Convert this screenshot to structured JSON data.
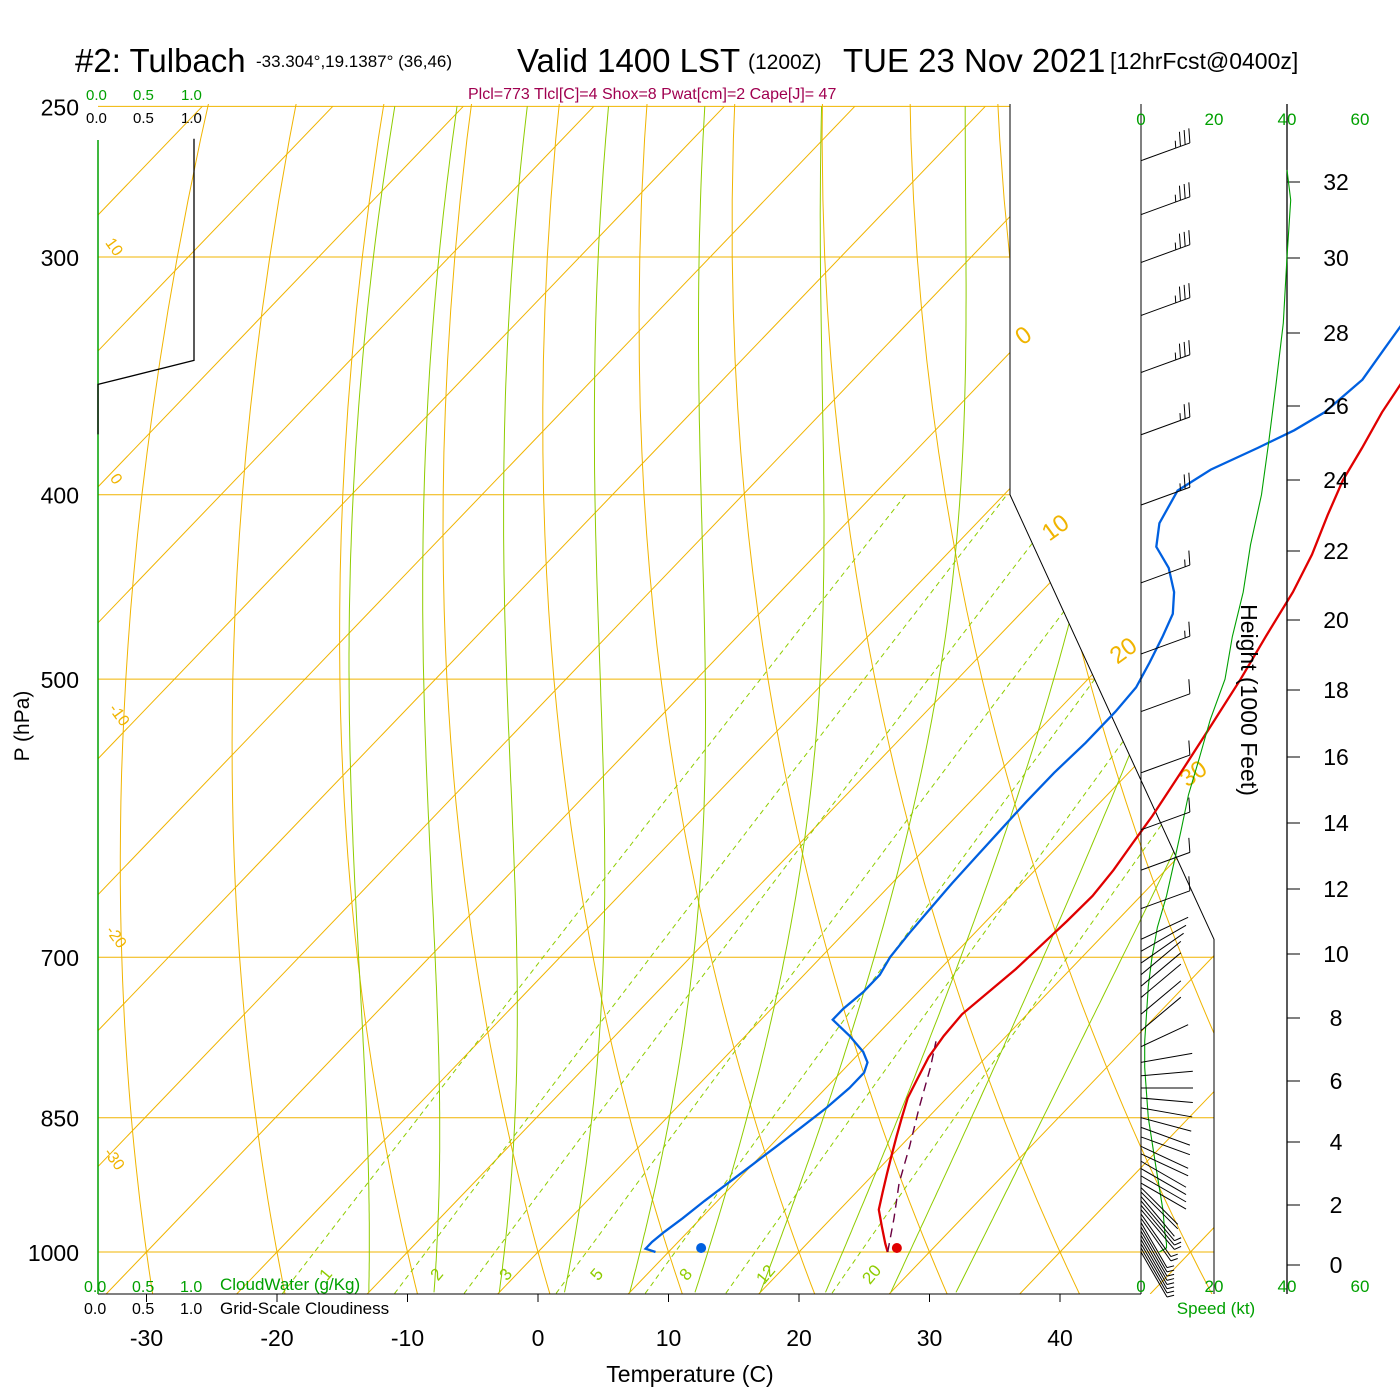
{
  "header": {
    "station": "#2: Tulbach",
    "coords": "-33.304°,19.1387° (36,46)",
    "valid": "Valid 1400 LST",
    "zulu": "(1200Z)",
    "date": "TUE 23 Nov 2021",
    "forecast": "[12hrFcst@0400z]",
    "indices": "Plcl=773 Tlcl[C]=4 Shox=8 Pwat[cm]=2 Cape[J]= 47"
  },
  "colors": {
    "isotherm": "#f0b400",
    "dry_adiabat": "#f0b400",
    "moist_adiabat": "#8fcc00",
    "mixing_ratio": "#8fcc00",
    "temperature": "#e00000",
    "dewpoint": "#0060e0",
    "parcel": "#6a0040",
    "green_label": "#00a000",
    "indices": "#a00050"
  },
  "scales": {
    "cloudwater_top": [
      "0.0",
      "0.5",
      "1.0"
    ],
    "cloudiness_top": [
      "0.0",
      "0.5",
      "1.0"
    ],
    "cloudwater_bottom": [
      "0.0",
      "0.5",
      "1.0"
    ],
    "cloudiness_bottom": [
      "0.0",
      "0.5",
      "1.0"
    ],
    "cloudwater_label": "CloudWater (g/Kg)",
    "cloudiness_label": "Grid-Scale Cloudiness",
    "speed_top": [
      "0",
      "20",
      "40",
      "60"
    ],
    "speed_bottom": [
      "0",
      "20",
      "40",
      "60"
    ],
    "speed_label": "Speed (kt)"
  },
  "chart_data": {
    "type": "line",
    "title": "Skew-T log-P sounding",
    "xlabel": "Temperature (C)",
    "ylabel": "P (hPa)",
    "y2label": "Height (1000 Feet)",
    "x_ticks": [
      "-30",
      "-20",
      "-10",
      "0",
      "10",
      "20",
      "30",
      "40"
    ],
    "p_ticks": [
      "250",
      "300",
      "400",
      "500",
      "700",
      "850",
      "1000"
    ],
    "height_ticks": [
      "0",
      "2",
      "4",
      "6",
      "8",
      "10",
      "12",
      "14",
      "16",
      "18",
      "20",
      "22",
      "24",
      "26",
      "28",
      "30",
      "32"
    ],
    "isotherm_labels": [
      "0",
      "10",
      "20",
      "30"
    ],
    "left_labels": [
      "10",
      "0",
      "-10",
      "-20",
      "-30"
    ],
    "mixing_ratio_labels": [
      "1",
      "2",
      "3",
      "5",
      "8",
      "12",
      "20"
    ],
    "series": [
      {
        "name": "Temperature",
        "points": [
          [
            26.8,
            1000
          ],
          [
            26,
            990
          ],
          [
            24.5,
            970
          ],
          [
            23,
            950
          ],
          [
            22,
            930
          ],
          [
            21,
            910
          ],
          [
            20,
            890
          ],
          [
            19,
            870
          ],
          [
            18,
            850
          ],
          [
            17,
            830
          ],
          [
            16.3,
            810
          ],
          [
            15.6,
            790
          ],
          [
            15.2,
            770
          ],
          [
            15,
            750
          ],
          [
            15.4,
            730
          ],
          [
            15.8,
            710
          ],
          [
            16,
            690
          ],
          [
            16.2,
            670
          ],
          [
            16.3,
            650
          ],
          [
            16,
            630
          ],
          [
            15.5,
            610
          ],
          [
            15,
            590
          ],
          [
            14,
            560
          ],
          [
            12.9,
            530
          ],
          [
            11.7,
            500
          ],
          [
            10.5,
            475
          ],
          [
            9.3,
            450
          ],
          [
            8,
            430
          ],
          [
            6.3,
            410
          ],
          [
            4.9,
            393
          ],
          [
            4,
            378
          ],
          [
            2.9,
            362
          ],
          [
            2,
            345
          ],
          [
            0.7,
            328
          ],
          [
            -0.4,
            313
          ],
          [
            -1.5,
            300
          ],
          [
            -2.6,
            289
          ],
          [
            -3.8,
            278
          ],
          [
            -5,
            267
          ],
          [
            -6,
            258
          ]
        ]
      },
      {
        "name": "Dewpoint",
        "points": [
          [
            9,
            1000
          ],
          [
            8,
            996
          ],
          [
            8,
            988
          ],
          [
            8.2,
            976
          ],
          [
            8.6,
            960
          ],
          [
            9,
            940
          ],
          [
            9.5,
            920
          ],
          [
            10,
            900
          ],
          [
            10.5,
            880
          ],
          [
            11,
            860
          ],
          [
            11.5,
            840
          ],
          [
            11.8,
            820
          ],
          [
            11.8,
            805
          ],
          [
            11.3,
            795
          ],
          [
            10.2,
            785
          ],
          [
            8,
            770
          ],
          [
            5.5,
            755
          ],
          [
            5.5,
            745
          ],
          [
            5.8,
            730
          ],
          [
            5.8,
            715
          ],
          [
            5.3,
            700
          ],
          [
            5,
            680
          ],
          [
            4.8,
            660
          ],
          [
            4.6,
            640
          ],
          [
            4.5,
            620
          ],
          [
            4.4,
            600
          ],
          [
            4.3,
            580
          ],
          [
            4.3,
            560
          ],
          [
            4.5,
            540
          ],
          [
            4.5,
            520
          ],
          [
            4.3,
            505
          ],
          [
            3.5,
            490
          ],
          [
            2.6,
            475
          ],
          [
            1.7,
            462
          ],
          [
            0.2,
            450
          ],
          [
            -2,
            437
          ],
          [
            -4.5,
            426
          ],
          [
            -6,
            414
          ],
          [
            -7,
            398
          ],
          [
            -6,
            388
          ],
          [
            -4,
            378
          ],
          [
            -2.5,
            370
          ],
          [
            -1.5,
            362
          ],
          [
            -1,
            348
          ],
          [
            -1.6,
            335
          ],
          [
            -2.2,
            322
          ],
          [
            -3.6,
            310
          ],
          [
            -4.5,
            300
          ],
          [
            -6,
            290
          ],
          [
            -7.2,
            281
          ],
          [
            -8.5,
            272
          ],
          [
            -9.5,
            265
          ],
          [
            -10.5,
            259
          ]
        ]
      },
      {
        "name": "Parcel",
        "points": [
          [
            26.8,
            1000
          ],
          [
            24.8,
            960
          ],
          [
            22.6,
            920
          ],
          [
            20.7,
            880
          ],
          [
            18.6,
            840
          ],
          [
            16.5,
            800
          ],
          [
            15,
            775
          ]
        ]
      }
    ],
    "surface_temperature": [
      27.5,
      1000
    ],
    "surface_dewpoint": [
      12.5,
      1000
    ],
    "wind_barbs": [
      {
        "p": 1000,
        "dir": 330,
        "spd": 8
      },
      {
        "p": 995,
        "dir": 330,
        "spd": 8
      },
      {
        "p": 990,
        "dir": 330,
        "spd": 7
      },
      {
        "p": 985,
        "dir": 330,
        "spd": 7
      },
      {
        "p": 980,
        "dir": 330,
        "spd": 6
      },
      {
        "p": 975,
        "dir": 330,
        "spd": 6
      },
      {
        "p": 970,
        "dir": 330,
        "spd": 6
      },
      {
        "p": 965,
        "dir": 330,
        "spd": 6
      },
      {
        "p": 960,
        "dir": 325,
        "spd": 6
      },
      {
        "p": 955,
        "dir": 325,
        "spd": 5
      },
      {
        "p": 950,
        "dir": 320,
        "spd": 5
      },
      {
        "p": 945,
        "dir": 320,
        "spd": 5
      },
      {
        "p": 940,
        "dir": 320,
        "spd": 5
      },
      {
        "p": 935,
        "dir": 320,
        "spd": 4
      },
      {
        "p": 930,
        "dir": 315,
        "spd": 4
      },
      {
        "p": 925,
        "dir": 315,
        "spd": 4
      },
      {
        "p": 920,
        "dir": 300,
        "spd": 4
      },
      {
        "p": 912,
        "dir": 300,
        "spd": 4
      },
      {
        "p": 904,
        "dir": 300,
        "spd": 4
      },
      {
        "p": 896,
        "dir": 300,
        "spd": 4
      },
      {
        "p": 888,
        "dir": 295,
        "spd": 4
      },
      {
        "p": 880,
        "dir": 295,
        "spd": 4
      },
      {
        "p": 870,
        "dir": 290,
        "spd": 4
      },
      {
        "p": 860,
        "dir": 290,
        "spd": 4
      },
      {
        "p": 850,
        "dir": 285,
        "spd": 4
      },
      {
        "p": 840,
        "dir": 280,
        "spd": 4
      },
      {
        "p": 830,
        "dir": 275,
        "spd": 3
      },
      {
        "p": 820,
        "dir": 270,
        "spd": 3
      },
      {
        "p": 808,
        "dir": 265,
        "spd": 3
      },
      {
        "p": 795,
        "dir": 260,
        "spd": 3
      },
      {
        "p": 780,
        "dir": 245,
        "spd": 3
      },
      {
        "p": 765,
        "dir": 230,
        "spd": 3
      },
      {
        "p": 750,
        "dir": 230,
        "spd": 3
      },
      {
        "p": 735,
        "dir": 230,
        "spd": 3
      },
      {
        "p": 725,
        "dir": 230,
        "spd": 3
      },
      {
        "p": 715,
        "dir": 230,
        "spd": 3
      },
      {
        "p": 705,
        "dir": 235,
        "spd": 3
      },
      {
        "p": 695,
        "dir": 240,
        "spd": 3
      },
      {
        "p": 685,
        "dir": 245,
        "spd": 3
      },
      {
        "p": 660,
        "dir": 250,
        "spd": 10
      },
      {
        "p": 630,
        "dir": 250,
        "spd": 10
      },
      {
        "p": 600,
        "dir": 250,
        "spd": 10
      },
      {
        "p": 560,
        "dir": 250,
        "spd": 10
      },
      {
        "p": 520,
        "dir": 250,
        "spd": 10
      },
      {
        "p": 485,
        "dir": 250,
        "spd": 15
      },
      {
        "p": 445,
        "dir": 250,
        "spd": 15
      },
      {
        "p": 405,
        "dir": 250,
        "spd": 25
      },
      {
        "p": 372,
        "dir": 250,
        "spd": 25
      },
      {
        "p": 345,
        "dir": 250,
        "spd": 35
      },
      {
        "p": 322,
        "dir": 250,
        "spd": 35
      },
      {
        "p": 302,
        "dir": 250,
        "spd": 35
      },
      {
        "p": 285,
        "dir": 250,
        "spd": 35
      },
      {
        "p": 267,
        "dir": 250,
        "spd": 35
      }
    ],
    "wind_speed_profile": [
      {
        "p": 1000,
        "spd": 5
      },
      {
        "p": 995,
        "spd": 7
      },
      {
        "p": 990,
        "spd": 7
      },
      {
        "p": 975,
        "spd": 6.5
      },
      {
        "p": 950,
        "spd": 6
      },
      {
        "p": 925,
        "spd": 5
      },
      {
        "p": 900,
        "spd": 4
      },
      {
        "p": 875,
        "spd": 3
      },
      {
        "p": 850,
        "spd": 2
      },
      {
        "p": 825,
        "spd": 1.5
      },
      {
        "p": 800,
        "spd": 1
      },
      {
        "p": 775,
        "spd": 1
      },
      {
        "p": 750,
        "spd": 1.5
      },
      {
        "p": 725,
        "spd": 2
      },
      {
        "p": 700,
        "spd": 3
      },
      {
        "p": 675,
        "spd": 4.5
      },
      {
        "p": 650,
        "spd": 7
      },
      {
        "p": 625,
        "spd": 9
      },
      {
        "p": 600,
        "spd": 11
      },
      {
        "p": 575,
        "spd": 13
      },
      {
        "p": 550,
        "spd": 16
      },
      {
        "p": 525,
        "spd": 19
      },
      {
        "p": 500,
        "spd": 23
      },
      {
        "p": 475,
        "spd": 25
      },
      {
        "p": 450,
        "spd": 28
      },
      {
        "p": 425,
        "spd": 30
      },
      {
        "p": 400,
        "spd": 33
      },
      {
        "p": 375,
        "spd": 35
      },
      {
        "p": 350,
        "spd": 37
      },
      {
        "p": 325,
        "spd": 39
      },
      {
        "p": 300,
        "spd": 40
      },
      {
        "p": 280,
        "spd": 41
      },
      {
        "p": 270,
        "spd": 40
      }
    ],
    "cloudiness_profile": [
      {
        "p": 350,
        "val": 0.0
      },
      {
        "p": 340,
        "val": 1.0
      },
      {
        "p": 260,
        "val": 1.0
      }
    ]
  }
}
